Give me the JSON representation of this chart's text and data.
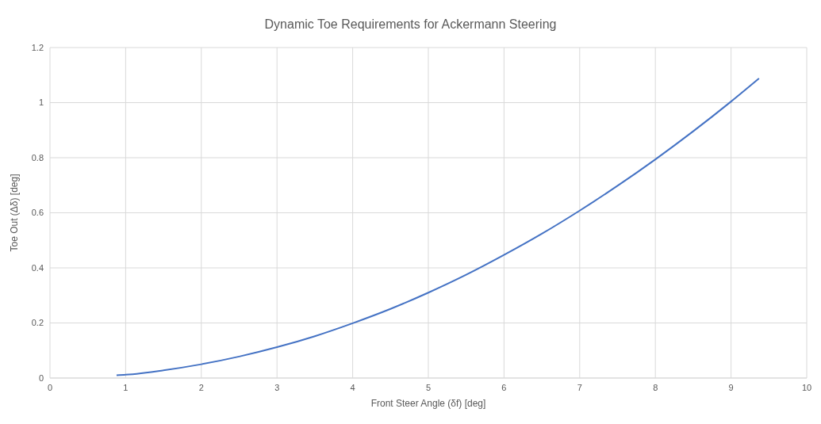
{
  "chart_data": {
    "type": "line",
    "title": "Dynamic Toe Requirements for Ackermann Steering",
    "xlabel": "Front Steer Angle (δf) [deg]",
    "ylabel": "Toe Out (Δδ) [deg]",
    "x": [
      0.88,
      1,
      1.5,
      2,
      2.5,
      3,
      3.5,
      4,
      4.5,
      5,
      5.5,
      6,
      6.5,
      7,
      7.5,
      8,
      8.5,
      9,
      9.37
    ],
    "series": [
      {
        "color": "#4472c4",
        "values": [
          0.01,
          0.012,
          0.028,
          0.05,
          0.078,
          0.112,
          0.152,
          0.199,
          0.251,
          0.31,
          0.375,
          0.447,
          0.524,
          0.608,
          0.698,
          0.794,
          0.896,
          1.004,
          1.088
        ]
      }
    ],
    "xlim": [
      0,
      10
    ],
    "xticks": [
      0,
      1,
      2,
      3,
      4,
      5,
      6,
      7,
      8,
      9,
      10
    ],
    "ylim": [
      0,
      1.2
    ],
    "yticks": [
      0,
      0.2,
      0.4,
      0.6,
      0.8,
      1,
      1.2
    ],
    "grid": true,
    "marker": "none",
    "line_style": "solid"
  }
}
